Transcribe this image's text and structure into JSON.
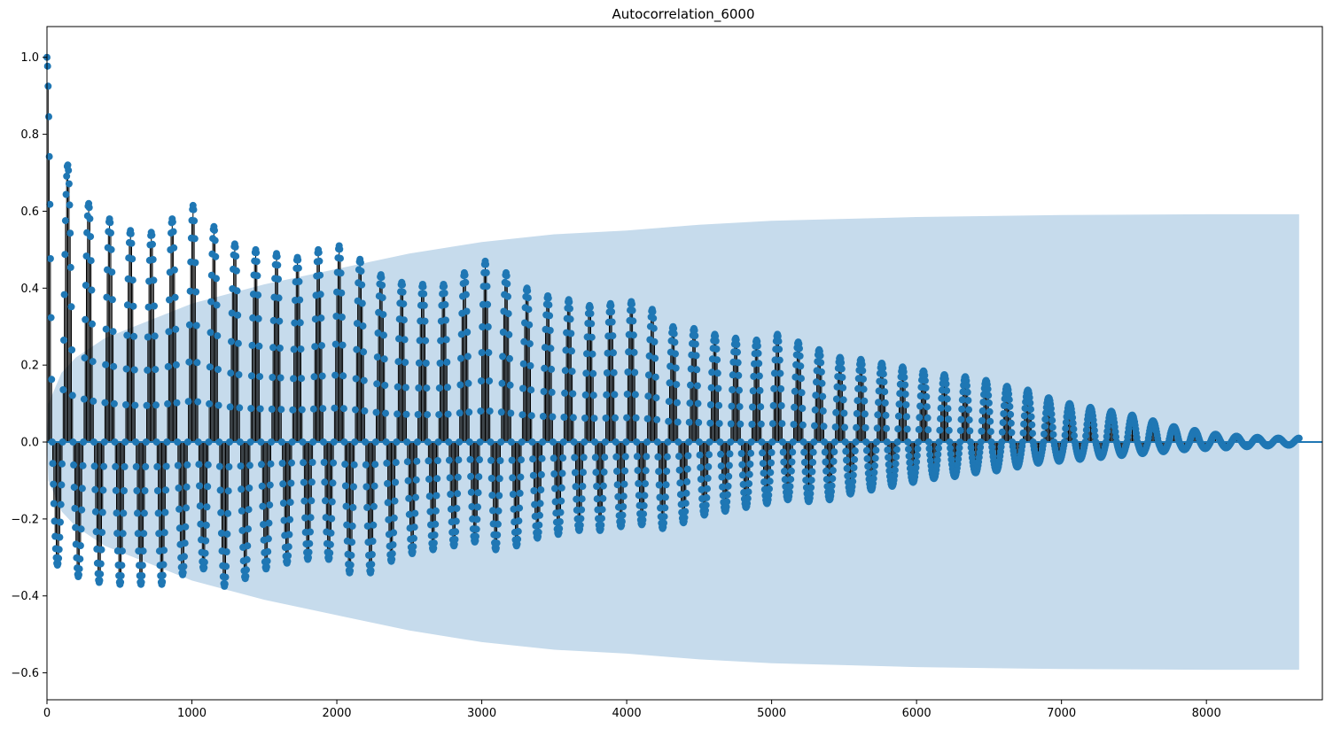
{
  "chart_data": {
    "type": "scatter",
    "title": "Autocorrelation_6000",
    "xlabel": "",
    "ylabel": "",
    "xlim": [
      0,
      8800
    ],
    "ylim": [
      -0.67,
      1.08
    ],
    "xticks": [
      0,
      1000,
      2000,
      3000,
      4000,
      5000,
      6000,
      7000,
      8000
    ],
    "yticks": [
      -0.6,
      -0.4,
      -0.2,
      0.0,
      0.2,
      0.4,
      0.6,
      0.8,
      1.0
    ],
    "ytick_labels": [
      "−0.6",
      "−0.4",
      "−0.2",
      "0.0",
      "0.2",
      "0.4",
      "0.6",
      "0.8",
      "1.0"
    ],
    "grid": false,
    "max_lag": 8640,
    "oscillation_period_lags": 144,
    "peaks": [
      [
        0,
        1.0
      ],
      [
        144,
        0.72
      ],
      [
        288,
        0.62
      ],
      [
        432,
        0.58
      ],
      [
        576,
        0.55
      ],
      [
        720,
        0.545
      ],
      [
        864,
        0.58
      ],
      [
        1008,
        0.615
      ],
      [
        1152,
        0.56
      ],
      [
        1296,
        0.515
      ],
      [
        1440,
        0.5
      ],
      [
        1584,
        0.49
      ],
      [
        1728,
        0.48
      ],
      [
        1872,
        0.5
      ],
      [
        2016,
        0.51
      ],
      [
        2160,
        0.475
      ],
      [
        2304,
        0.435
      ],
      [
        2448,
        0.415
      ],
      [
        2592,
        0.41
      ],
      [
        2736,
        0.41
      ],
      [
        2880,
        0.44
      ],
      [
        3024,
        0.47
      ],
      [
        3168,
        0.44
      ],
      [
        3312,
        0.4
      ],
      [
        3456,
        0.38
      ],
      [
        3600,
        0.37
      ],
      [
        3744,
        0.355
      ],
      [
        3888,
        0.36
      ],
      [
        4032,
        0.365
      ],
      [
        4176,
        0.345
      ],
      [
        4320,
        0.3
      ],
      [
        4464,
        0.295
      ],
      [
        4608,
        0.28
      ],
      [
        4752,
        0.27
      ],
      [
        4896,
        0.265
      ],
      [
        5040,
        0.28
      ],
      [
        5184,
        0.26
      ],
      [
        5328,
        0.24
      ],
      [
        5472,
        0.22
      ],
      [
        5616,
        0.215
      ],
      [
        5760,
        0.205
      ],
      [
        5904,
        0.195
      ],
      [
        6048,
        0.185
      ],
      [
        6192,
        0.175
      ],
      [
        6336,
        0.17
      ],
      [
        6480,
        0.16
      ],
      [
        6624,
        0.145
      ],
      [
        6768,
        0.135
      ],
      [
        6912,
        0.115
      ],
      [
        7056,
        0.1
      ],
      [
        7200,
        0.09
      ],
      [
        7344,
        0.08
      ],
      [
        7488,
        0.07
      ],
      [
        7632,
        0.055
      ],
      [
        7776,
        0.04
      ],
      [
        7920,
        0.03
      ],
      [
        8064,
        0.02
      ],
      [
        8208,
        0.015
      ],
      [
        8352,
        0.012
      ],
      [
        8496,
        0.01
      ],
      [
        8640,
        0.01
      ]
    ],
    "troughs": [
      [
        72,
        -0.32
      ],
      [
        216,
        -0.35
      ],
      [
        360,
        -0.365
      ],
      [
        504,
        -0.37
      ],
      [
        648,
        -0.37
      ],
      [
        792,
        -0.37
      ],
      [
        936,
        -0.345
      ],
      [
        1080,
        -0.33
      ],
      [
        1224,
        -0.375
      ],
      [
        1368,
        -0.355
      ],
      [
        1512,
        -0.33
      ],
      [
        1656,
        -0.315
      ],
      [
        1800,
        -0.305
      ],
      [
        1944,
        -0.305
      ],
      [
        2088,
        -0.34
      ],
      [
        2232,
        -0.34
      ],
      [
        2376,
        -0.31
      ],
      [
        2520,
        -0.29
      ],
      [
        2664,
        -0.28
      ],
      [
        2808,
        -0.27
      ],
      [
        2952,
        -0.26
      ],
      [
        3096,
        -0.28
      ],
      [
        3240,
        -0.27
      ],
      [
        3384,
        -0.25
      ],
      [
        3528,
        -0.24
      ],
      [
        3672,
        -0.23
      ],
      [
        3816,
        -0.23
      ],
      [
        3960,
        -0.22
      ],
      [
        4104,
        -0.215
      ],
      [
        4248,
        -0.225
      ],
      [
        4392,
        -0.21
      ],
      [
        4536,
        -0.19
      ],
      [
        4680,
        -0.18
      ],
      [
        4824,
        -0.17
      ],
      [
        4968,
        -0.16
      ],
      [
        5112,
        -0.15
      ],
      [
        5256,
        -0.155
      ],
      [
        5400,
        -0.15
      ],
      [
        5544,
        -0.135
      ],
      [
        5688,
        -0.125
      ],
      [
        5832,
        -0.115
      ],
      [
        5976,
        -0.105
      ],
      [
        6120,
        -0.095
      ],
      [
        6264,
        -0.09
      ],
      [
        6408,
        -0.08
      ],
      [
        6552,
        -0.075
      ],
      [
        6696,
        -0.065
      ],
      [
        6840,
        -0.055
      ],
      [
        6984,
        -0.05
      ],
      [
        7128,
        -0.045
      ],
      [
        7272,
        -0.04
      ],
      [
        7416,
        -0.035
      ],
      [
        7560,
        -0.03
      ],
      [
        7704,
        -0.025
      ],
      [
        7848,
        -0.02
      ],
      [
        7992,
        -0.017
      ],
      [
        8136,
        -0.015
      ],
      [
        8280,
        -0.012
      ],
      [
        8424,
        -0.01
      ],
      [
        8568,
        -0.008
      ]
    ],
    "confidence_band": {
      "points": [
        [
          0,
          0.0
        ],
        [
          10,
          0.1
        ],
        [
          100,
          0.18
        ],
        [
          200,
          0.22
        ],
        [
          400,
          0.27
        ],
        [
          600,
          0.3
        ],
        [
          800,
          0.33
        ],
        [
          1000,
          0.36
        ],
        [
          1200,
          0.38
        ],
        [
          1500,
          0.41
        ],
        [
          2000,
          0.45
        ],
        [
          2500,
          0.49
        ],
        [
          3000,
          0.52
        ],
        [
          3500,
          0.54
        ],
        [
          4000,
          0.55
        ],
        [
          4500,
          0.565
        ],
        [
          5000,
          0.575
        ],
        [
          5500,
          0.58
        ],
        [
          6000,
          0.585
        ],
        [
          7000,
          0.59
        ],
        [
          8000,
          0.592
        ],
        [
          8640,
          0.592
        ]
      ]
    },
    "colors": {
      "markers": "#1f77b4",
      "stems": "#000000",
      "band": "#c6dbec",
      "baseline": "#1f77b4"
    }
  }
}
